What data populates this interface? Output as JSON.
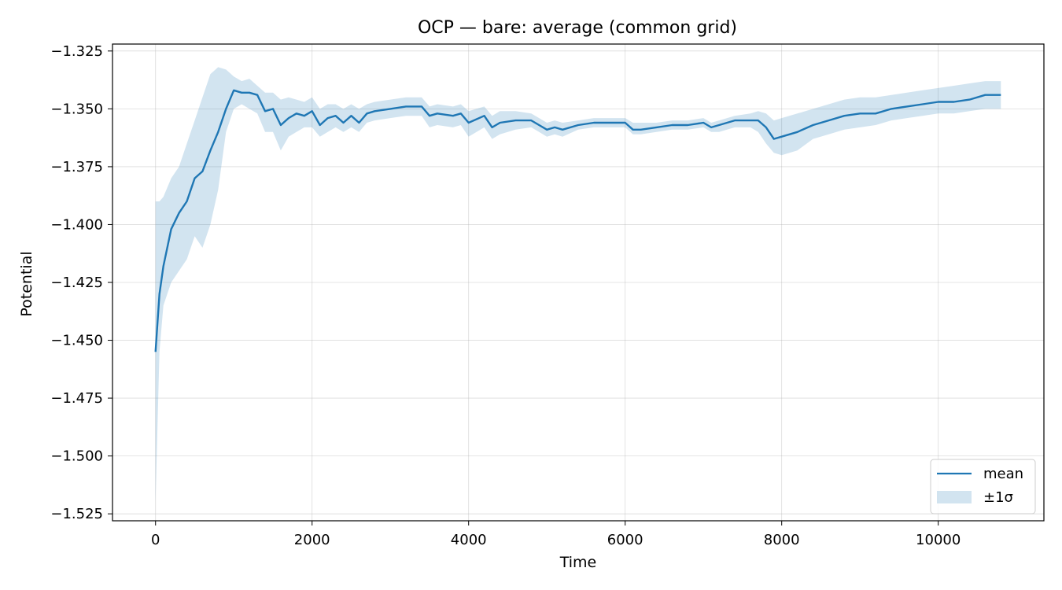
{
  "chart_data": {
    "type": "line",
    "title": "OCP — bare: average (common grid)",
    "xlabel": "Time",
    "ylabel": "Potential",
    "xlim": [
      -550,
      11350
    ],
    "ylim": [
      -1.528,
      -1.322
    ],
    "x_ticks": [
      0,
      2000,
      4000,
      6000,
      8000,
      10000
    ],
    "x_tick_labels": [
      "0",
      "2000",
      "4000",
      "6000",
      "8000",
      "10000"
    ],
    "y_ticks": [
      -1.325,
      -1.35,
      -1.375,
      -1.4,
      -1.425,
      -1.45,
      -1.475,
      -1.5,
      -1.525
    ],
    "y_tick_labels": [
      "−1.325",
      "−1.350",
      "−1.375",
      "−1.400",
      "−1.425",
      "−1.450",
      "−1.475",
      "−1.500",
      "−1.525"
    ],
    "grid": true,
    "legend_position": "lower-right",
    "colors": {
      "mean": "#1f77b4",
      "band": "#1f77b4"
    },
    "series": [
      {
        "name": "mean",
        "kind": "line",
        "x": [
          0,
          50,
          100,
          200,
          300,
          400,
          500,
          600,
          700,
          800,
          900,
          1000,
          1100,
          1200,
          1300,
          1400,
          1500,
          1600,
          1700,
          1800,
          1900,
          2000,
          2100,
          2200,
          2300,
          2400,
          2500,
          2600,
          2700,
          2800,
          3000,
          3200,
          3400,
          3500,
          3600,
          3800,
          3900,
          4000,
          4200,
          4300,
          4400,
          4600,
          4800,
          4900,
          5000,
          5100,
          5200,
          5400,
          5600,
          5800,
          6000,
          6100,
          6200,
          6400,
          6600,
          6800,
          7000,
          7100,
          7200,
          7400,
          7600,
          7700,
          7800,
          7900,
          8000,
          8200,
          8400,
          8600,
          8800,
          9000,
          9200,
          9400,
          9600,
          9800,
          10000,
          10200,
          10400,
          10600,
          10800
        ],
        "y": [
          -1.455,
          -1.43,
          -1.418,
          -1.402,
          -1.395,
          -1.39,
          -1.38,
          -1.377,
          -1.368,
          -1.36,
          -1.35,
          -1.342,
          -1.343,
          -1.343,
          -1.344,
          -1.351,
          -1.35,
          -1.357,
          -1.354,
          -1.352,
          -1.353,
          -1.351,
          -1.357,
          -1.354,
          -1.353,
          -1.356,
          -1.353,
          -1.356,
          -1.352,
          -1.351,
          -1.35,
          -1.349,
          -1.349,
          -1.353,
          -1.352,
          -1.353,
          -1.352,
          -1.356,
          -1.353,
          -1.358,
          -1.356,
          -1.355,
          -1.355,
          -1.357,
          -1.359,
          -1.358,
          -1.359,
          -1.357,
          -1.356,
          -1.356,
          -1.356,
          -1.359,
          -1.359,
          -1.358,
          -1.357,
          -1.357,
          -1.356,
          -1.358,
          -1.357,
          -1.355,
          -1.355,
          -1.355,
          -1.358,
          -1.363,
          -1.362,
          -1.36,
          -1.357,
          -1.355,
          -1.353,
          -1.352,
          -1.352,
          -1.35,
          -1.349,
          -1.348,
          -1.347,
          -1.347,
          -1.346,
          -1.344,
          -1.344
        ]
      },
      {
        "name": "±1σ",
        "kind": "band",
        "x": [
          0,
          50,
          100,
          200,
          300,
          400,
          500,
          600,
          700,
          800,
          900,
          1000,
          1100,
          1200,
          1300,
          1400,
          1500,
          1600,
          1700,
          1800,
          1900,
          2000,
          2100,
          2200,
          2300,
          2400,
          2500,
          2600,
          2700,
          2800,
          3000,
          3200,
          3400,
          3500,
          3600,
          3800,
          3900,
          4000,
          4200,
          4300,
          4400,
          4600,
          4800,
          4900,
          5000,
          5100,
          5200,
          5400,
          5600,
          5800,
          6000,
          6100,
          6200,
          6400,
          6600,
          6800,
          7000,
          7100,
          7200,
          7400,
          7600,
          7700,
          7800,
          7900,
          8000,
          8200,
          8400,
          8600,
          8800,
          9000,
          9200,
          9400,
          9600,
          9800,
          10000,
          10200,
          10400,
          10600,
          10800
        ],
        "lower": [
          -1.52,
          -1.455,
          -1.435,
          -1.425,
          -1.42,
          -1.415,
          -1.405,
          -1.41,
          -1.4,
          -1.385,
          -1.36,
          -1.35,
          -1.348,
          -1.35,
          -1.352,
          -1.36,
          -1.36,
          -1.368,
          -1.362,
          -1.36,
          -1.358,
          -1.358,
          -1.362,
          -1.36,
          -1.358,
          -1.36,
          -1.358,
          -1.36,
          -1.356,
          -1.355,
          -1.354,
          -1.353,
          -1.353,
          -1.358,
          -1.357,
          -1.358,
          -1.357,
          -1.362,
          -1.358,
          -1.363,
          -1.361,
          -1.359,
          -1.358,
          -1.36,
          -1.362,
          -1.361,
          -1.362,
          -1.359,
          -1.358,
          -1.358,
          -1.358,
          -1.361,
          -1.361,
          -1.36,
          -1.359,
          -1.359,
          -1.358,
          -1.36,
          -1.36,
          -1.358,
          -1.358,
          -1.36,
          -1.365,
          -1.369,
          -1.37,
          -1.368,
          -1.363,
          -1.361,
          -1.359,
          -1.358,
          -1.357,
          -1.355,
          -1.354,
          -1.353,
          -1.352,
          -1.352,
          -1.351,
          -1.35,
          -1.35
        ],
        "upper": [
          -1.39,
          -1.39,
          -1.388,
          -1.38,
          -1.375,
          -1.365,
          -1.355,
          -1.345,
          -1.335,
          -1.332,
          -1.333,
          -1.336,
          -1.338,
          -1.337,
          -1.34,
          -1.343,
          -1.343,
          -1.346,
          -1.345,
          -1.346,
          -1.347,
          -1.345,
          -1.35,
          -1.348,
          -1.348,
          -1.35,
          -1.348,
          -1.35,
          -1.348,
          -1.347,
          -1.346,
          -1.345,
          -1.345,
          -1.349,
          -1.348,
          -1.349,
          -1.348,
          -1.351,
          -1.349,
          -1.353,
          -1.351,
          -1.351,
          -1.352,
          -1.354,
          -1.356,
          -1.355,
          -1.356,
          -1.355,
          -1.354,
          -1.354,
          -1.354,
          -1.356,
          -1.356,
          -1.356,
          -1.355,
          -1.355,
          -1.354,
          -1.356,
          -1.355,
          -1.353,
          -1.352,
          -1.351,
          -1.352,
          -1.355,
          -1.354,
          -1.352,
          -1.35,
          -1.348,
          -1.346,
          -1.345,
          -1.345,
          -1.344,
          -1.343,
          -1.342,
          -1.341,
          -1.34,
          -1.339,
          -1.338,
          -1.338
        ]
      }
    ]
  }
}
